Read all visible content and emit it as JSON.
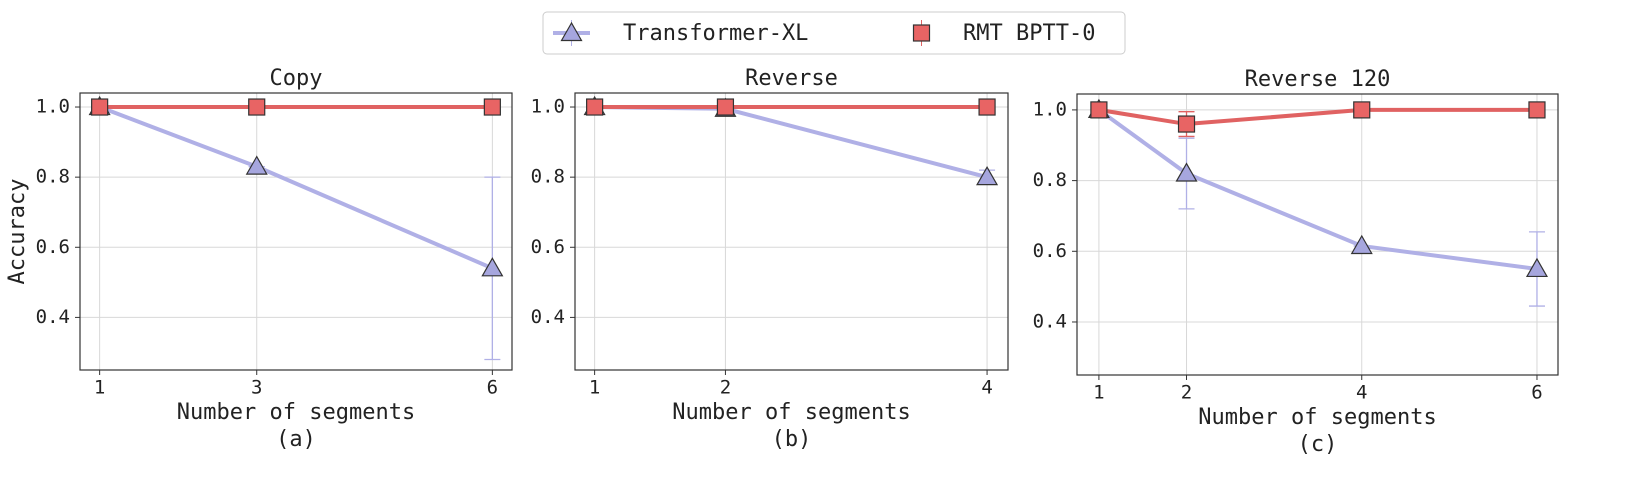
{
  "chart_data": [
    {
      "type": "line",
      "title": "Copy",
      "ylabel": "Accuracy",
      "xlabel": "Number of segments",
      "caption": "(a)",
      "x": [
        1,
        3,
        6
      ],
      "xlim": [
        0.75,
        6.25
      ],
      "xticks": [
        1,
        3,
        6
      ],
      "ylim": [
        0.25,
        1.04
      ],
      "yticks": [
        0.4,
        0.6,
        0.8,
        {
          "value": 1,
          "label": "1.0"
        }
      ],
      "grid": true,
      "series": [
        {
          "name": "Transformer-XL",
          "color": "#b0b0e6",
          "marker": "triangle",
          "values": [
            1.0,
            0.83,
            0.54
          ],
          "errors": [
            0,
            0,
            0.26
          ]
        },
        {
          "name": "RMT BPTT-0",
          "color": "#e06262",
          "marker": "square",
          "values": [
            1.0,
            1.0,
            1.0
          ],
          "errors": [
            0,
            0,
            0
          ]
        }
      ]
    },
    {
      "type": "line",
      "title": "Reverse",
      "xlabel": "Number of segments",
      "caption": "(b)",
      "x": [
        1,
        2,
        4
      ],
      "xlim": [
        0.85,
        4.16
      ],
      "xticks": [
        1,
        2,
        4
      ],
      "ylim": [
        0.25,
        1.04
      ],
      "yticks": [
        0.4,
        0.6,
        0.8,
        {
          "value": 1,
          "label": "1.0"
        }
      ],
      "grid": true,
      "series": [
        {
          "values": [
            1.0,
            0.995,
            0.8
          ],
          "errors": [
            0,
            0,
            0.02
          ]
        },
        {
          "values": [
            1.0,
            1.0,
            1.0
          ],
          "errors": [
            0,
            0,
            0
          ]
        }
      ]
    },
    {
      "type": "line",
      "title": "Reverse 120",
      "xlabel": "Number of segments",
      "caption": "(c)",
      "x": [
        1,
        2,
        4,
        6
      ],
      "xlim": [
        0.75,
        6.24
      ],
      "xticks": [
        1,
        2,
        4,
        6
      ],
      "ylim": [
        0.25,
        1.045
      ],
      "yticks": [
        0.4,
        0.6,
        0.8,
        {
          "value": 1,
          "label": "1.0"
        }
      ],
      "grid": true,
      "series": [
        {
          "values": [
            1.0,
            0.82,
            0.615,
            0.55
          ],
          "errors": [
            0,
            0.1,
            0,
            0.105
          ]
        },
        {
          "values": [
            1.0,
            0.96,
            1.0,
            1.0
          ],
          "errors": [
            0,
            0.035,
            0,
            0
          ]
        }
      ]
    }
  ]
}
